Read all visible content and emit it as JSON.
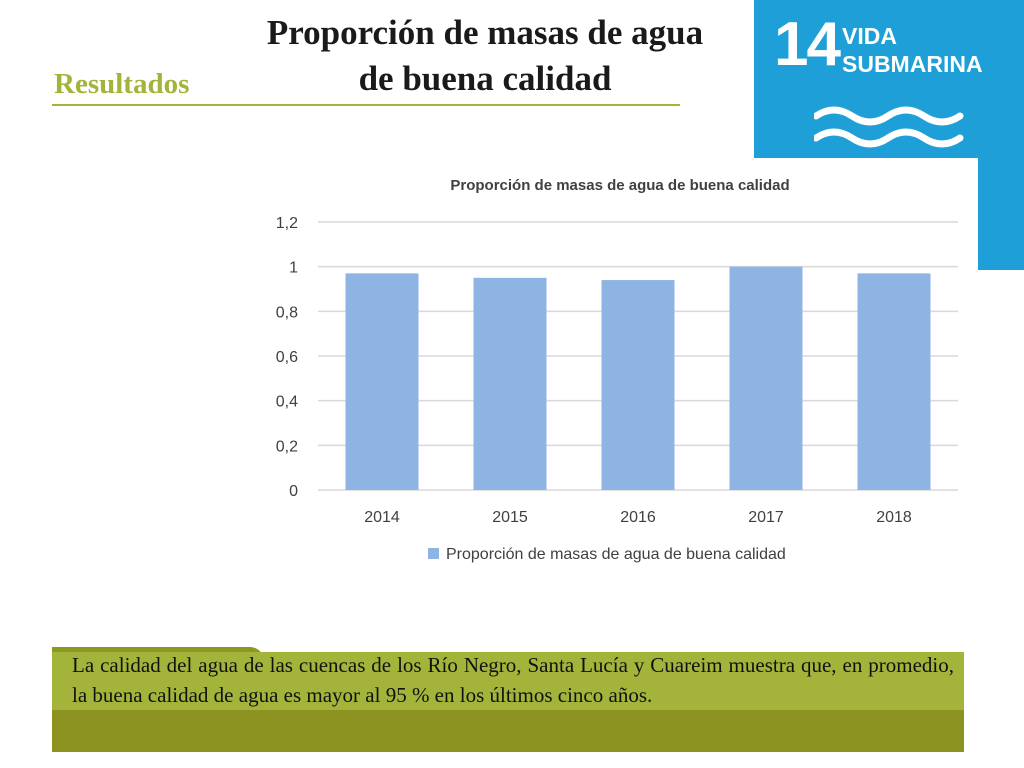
{
  "header": {
    "section_label": "Resultados",
    "title": "Proporción de masas de agua de buena calidad"
  },
  "sdg_badge": {
    "number": "14",
    "name_line1": "VIDA",
    "name_line2": "SUBMARINA",
    "icon": "waves-icon",
    "color": "#1e9fd8"
  },
  "chart_data": {
    "type": "bar",
    "title": "Proporción de masas de agua de buena calidad",
    "categories": [
      "2014",
      "2015",
      "2016",
      "2017",
      "2018"
    ],
    "series": [
      {
        "name": "Proporción de masas de agua de buena calidad",
        "values": [
          0.97,
          0.95,
          0.94,
          1.0,
          0.97
        ],
        "color": "#8eb4e3"
      }
    ],
    "ylim": [
      0,
      1.2
    ],
    "yticks": [
      "0",
      "0,2",
      "0,4",
      "0,6",
      "0,8",
      "1",
      "1,2"
    ],
    "ytick_values": [
      0,
      0.2,
      0.4,
      0.6,
      0.8,
      1.0,
      1.2
    ],
    "xlabel": "",
    "ylabel": "",
    "grid": true,
    "legend_position": "bottom"
  },
  "note": {
    "text": "La calidad del agua de las cuencas de los Río Negro, Santa Lucía y Cuareim muestra que, en promedio, la buena calidad de agua es mayor al 95 % en los últimos cinco años."
  },
  "colors": {
    "accent_green": "#a4b43a",
    "dark_olive": "#8d9320"
  }
}
